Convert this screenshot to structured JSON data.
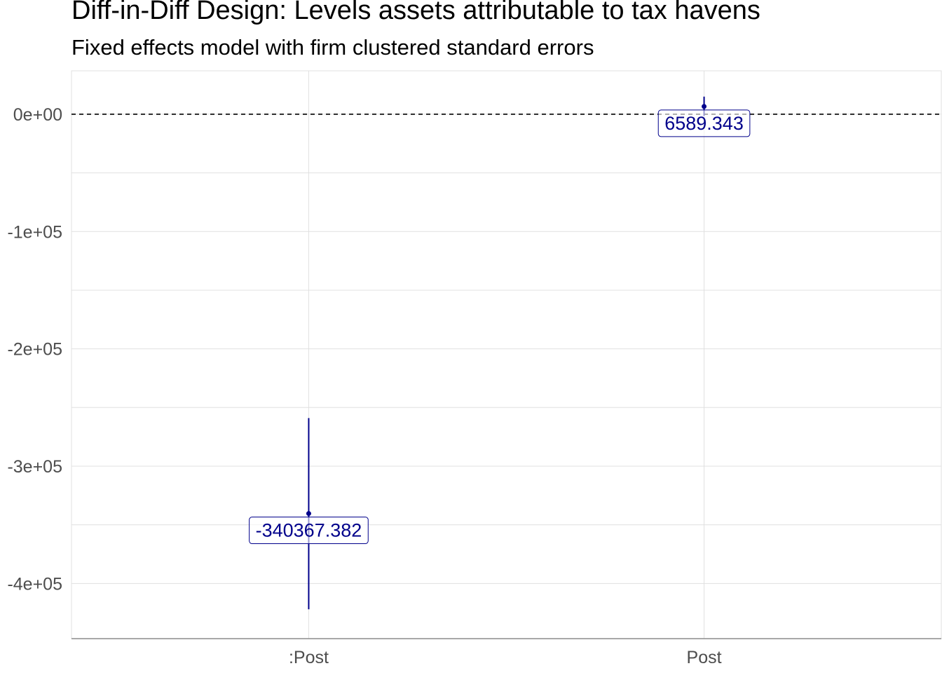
{
  "chart_data": {
    "type": "scatter",
    "subtype": "coefficient plot with confidence intervals",
    "title": "Diff-in-Diff Design: Levels assets attributable to tax havens",
    "subtitle": "Fixed effects model with firm clustered standard errors",
    "xlabel": "",
    "ylabel": "",
    "categories": [
      ":Post",
      "Post"
    ],
    "estimates": [
      {
        "term": ":Post",
        "estimate": -340367.382,
        "ci_low": -422000,
        "ci_high": -259000,
        "label": "-340367.382"
      },
      {
        "term": "Post",
        "estimate": 6589.343,
        "ci_low": -1500,
        "ci_high": 15000,
        "label": "6589.343"
      }
    ],
    "ylim": [
      -447000,
      37000
    ],
    "yticks": [
      0,
      -100000,
      -200000,
      -300000,
      -400000
    ],
    "ytick_labels": [
      "0e+00",
      "-1e+05",
      "-2e+05",
      "-3e+05",
      "-4e+05"
    ],
    "reference_line": {
      "y": 0,
      "style": "dashed"
    },
    "grid": true,
    "colors": {
      "series": "#00008b",
      "grid": "#e0e0e0",
      "axis": "#8c8c8c",
      "tick_text": "#4d4d4d"
    }
  }
}
